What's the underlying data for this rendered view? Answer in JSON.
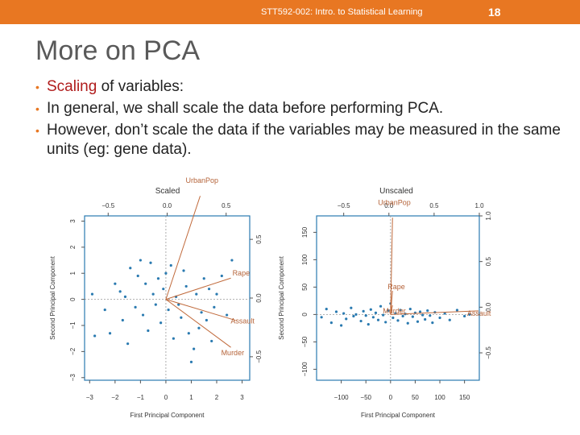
{
  "header": {
    "course": "STT592-002: Intro. to Statistical Learning",
    "page": "18"
  },
  "slide": {
    "title": "More on PCA",
    "bullets": {
      "b1_highlight": "Scaling",
      "b1_rest": " of variables:",
      "b2": "In general, we shall scale the data before performing PCA.",
      "b3": "However, don’t scale the data if the variables may be measured in the same units (eg: gene data)."
    }
  },
  "chart_data": [
    {
      "type": "scatter",
      "title": "Scaled",
      "xlabel": "First Principal Component",
      "ylabel": "Second Principal Component",
      "xlim": [
        -3.2,
        3.3
      ],
      "ylim": [
        -3.1,
        3.2
      ],
      "x_ticks": [
        "−3",
        "−2",
        "−1",
        "0",
        "1",
        "2",
        "3"
      ],
      "y_ticks": [
        "−3",
        "−2",
        "−1",
        "0",
        "1",
        "2",
        "3"
      ],
      "top_ticks": [
        "−0.5",
        "0.0",
        "0.5"
      ],
      "right_ticks": [
        "−0.5",
        "0.0",
        "0.5"
      ],
      "loading_lim": [
        -0.7,
        0.7
      ],
      "loadings": [
        {
          "name": "UrbanPop",
          "x": 0.28,
          "y": 0.87
        },
        {
          "name": "Rape",
          "x": 0.54,
          "y": 0.17
        },
        {
          "name": "Assault",
          "x": 0.58,
          "y": -0.19
        },
        {
          "name": "Murder",
          "x": 0.54,
          "y": -0.42
        }
      ],
      "points": [
        [
          -2.9,
          0.2
        ],
        [
          -2.8,
          -1.4
        ],
        [
          -2.4,
          -0.4
        ],
        [
          -2.2,
          -1.3
        ],
        [
          -2.0,
          0.6
        ],
        [
          -1.8,
          0.3
        ],
        [
          -1.7,
          -0.8
        ],
        [
          -1.6,
          0.1
        ],
        [
          -1.5,
          -1.7
        ],
        [
          -1.4,
          1.2
        ],
        [
          -1.2,
          -0.3
        ],
        [
          -1.1,
          0.9
        ],
        [
          -1.0,
          1.5
        ],
        [
          -0.9,
          -0.6
        ],
        [
          -0.8,
          0.6
        ],
        [
          -0.7,
          -1.2
        ],
        [
          -0.6,
          1.4
        ],
        [
          -0.5,
          0.2
        ],
        [
          -0.4,
          -0.2
        ],
        [
          -0.3,
          0.8
        ],
        [
          -0.2,
          -0.9
        ],
        [
          -0.1,
          0.4
        ],
        [
          0.0,
          1.0
        ],
        [
          0.1,
          -0.4
        ],
        [
          0.2,
          1.3
        ],
        [
          0.3,
          -1.5
        ],
        [
          0.4,
          0.1
        ],
        [
          0.5,
          -0.2
        ],
        [
          0.6,
          -0.7
        ],
        [
          0.7,
          1.1
        ],
        [
          0.8,
          0.5
        ],
        [
          0.9,
          -1.3
        ],
        [
          1.0,
          -2.4
        ],
        [
          1.1,
          -1.9
        ],
        [
          1.2,
          0.2
        ],
        [
          1.3,
          -1.1
        ],
        [
          1.4,
          -0.5
        ],
        [
          1.5,
          0.8
        ],
        [
          1.6,
          -0.8
        ],
        [
          1.7,
          0.4
        ],
        [
          1.8,
          -1.6
        ],
        [
          1.9,
          -0.3
        ],
        [
          2.0,
          0.2
        ],
        [
          2.2,
          0.9
        ],
        [
          2.4,
          -0.6
        ],
        [
          2.6,
          1.5
        ]
      ]
    },
    {
      "type": "scatter",
      "title": "Unscaled",
      "xlabel": "First Principal Component",
      "ylabel": "Second Principal Component",
      "xlim": [
        -150,
        180
      ],
      "ylim": [
        -120,
        180
      ],
      "x_ticks": [
        "−100",
        "−50",
        "0",
        "50",
        "100",
        "150"
      ],
      "y_ticks": [
        "−100",
        "−50",
        "0",
        "50",
        "100",
        "150"
      ],
      "top_ticks": [
        "−0.5",
        "0.0",
        "0.5",
        "1.0"
      ],
      "right_ticks": [
        "−0.5",
        "0.0",
        "0.5",
        "1.0"
      ],
      "loading_lim": [
        -0.8,
        1.0
      ],
      "loadings": [
        {
          "name": "UrbanPop",
          "x": 0.04,
          "y": 0.98
        },
        {
          "name": "Rape",
          "x": 0.04,
          "y": 0.18
        },
        {
          "name": "Murder",
          "x": 0.04,
          "y": 0.02
        },
        {
          "name": "Assault",
          "x": 0.99,
          "y": -0.04
        }
      ],
      "points": [
        [
          -140,
          -5
        ],
        [
          -130,
          10
        ],
        [
          -120,
          -15
        ],
        [
          -110,
          5
        ],
        [
          -100,
          -20
        ],
        [
          -95,
          2
        ],
        [
          -90,
          -8
        ],
        [
          -80,
          12
        ],
        [
          -75,
          -3
        ],
        [
          -70,
          0
        ],
        [
          -60,
          -12
        ],
        [
          -55,
          6
        ],
        [
          -50,
          -2
        ],
        [
          -45,
          -18
        ],
        [
          -40,
          9
        ],
        [
          -35,
          -5
        ],
        [
          -30,
          3
        ],
        [
          -25,
          -10
        ],
        [
          -20,
          15
        ],
        [
          -15,
          -1
        ],
        [
          -10,
          -14
        ],
        [
          -5,
          7
        ],
        [
          0,
          20
        ],
        [
          5,
          -6
        ],
        [
          10,
          2
        ],
        [
          15,
          -11
        ],
        [
          20,
          8
        ],
        [
          25,
          -3
        ],
        [
          30,
          1
        ],
        [
          35,
          -16
        ],
        [
          40,
          10
        ],
        [
          45,
          -4
        ],
        [
          50,
          3
        ],
        [
          55,
          -13
        ],
        [
          60,
          5
        ],
        [
          65,
          -1
        ],
        [
          70,
          -9
        ],
        [
          75,
          7
        ],
        [
          80,
          -2
        ],
        [
          85,
          -15
        ],
        [
          90,
          4
        ],
        [
          100,
          -6
        ],
        [
          110,
          2
        ],
        [
          120,
          -10
        ],
        [
          135,
          8
        ],
        [
          150,
          -3
        ],
        [
          160,
          0
        ]
      ]
    }
  ]
}
